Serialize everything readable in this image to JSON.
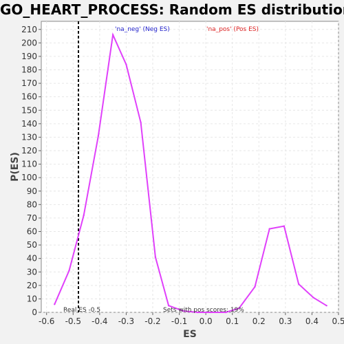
{
  "chart_data": {
    "type": "line",
    "title": "GO_HEART_PROCESS: Random ES distribution",
    "xlabel": "ES",
    "ylabel": "P(ES)",
    "xlim": [
      -0.62,
      0.5
    ],
    "ylim": [
      0,
      216
    ],
    "x_ticks": [
      -0.6,
      -0.5,
      -0.4,
      -0.3,
      -0.2,
      -0.1,
      0.0,
      0.1,
      0.2,
      0.3,
      0.4,
      0.5
    ],
    "x_tick_labels": [
      "-0.6",
      "-0.5",
      "-0.4",
      "-0.3",
      "-0.2",
      "-0.1",
      "0.0",
      "0.1",
      "0.2",
      "0.3",
      "0.4",
      "0.5"
    ],
    "y_ticks": [
      0,
      10,
      20,
      30,
      40,
      50,
      60,
      70,
      80,
      90,
      100,
      110,
      120,
      130,
      140,
      150,
      160,
      170,
      180,
      190,
      200,
      210
    ],
    "grid": true,
    "series": [
      {
        "color": "#e040fb",
        "x": [
          -0.57,
          -0.515,
          -0.46,
          -0.405,
          -0.35,
          -0.3,
          -0.245,
          -0.19,
          -0.14,
          -0.085,
          -0.03,
          0.02,
          0.075,
          0.125,
          0.185,
          0.24,
          0.295,
          0.35,
          0.405,
          0.455
        ],
        "y": [
          6,
          31,
          72,
          131,
          206,
          184,
          141,
          41,
          5,
          1,
          0,
          0,
          0,
          3,
          19,
          62,
          64,
          21,
          11,
          5
        ]
      }
    ],
    "legend": [
      {
        "label": "'na_neg' (Neg ES)",
        "color": "#2222cc"
      },
      {
        "label": "'na_pos' (Pos ES)",
        "color": "#dd2222"
      }
    ],
    "real_es": {
      "x": -0.48,
      "label": "Real ES -0.5"
    },
    "annotation": "Sets with pos scores: 19%"
  }
}
